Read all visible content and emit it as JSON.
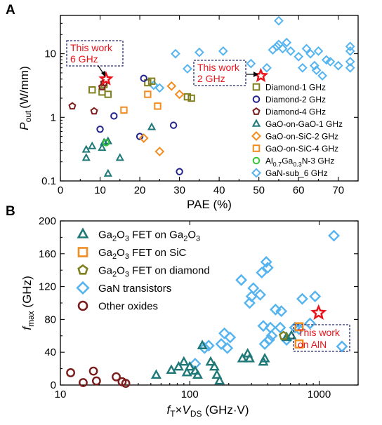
{
  "chart_data": [
    {
      "type": "scatter",
      "panel_label": "A",
      "xlabel": "PAE (%)",
      "ylabel_main": "P",
      "ylabel_sub": "out",
      "ylabel_unit": "(W/mm)",
      "x_ticks": [
        "0",
        "10",
        "20",
        "30",
        "40",
        "50",
        "60",
        "70"
      ],
      "y_ticks": [
        "0.1",
        "1",
        "10"
      ],
      "xlim": [
        0,
        75
      ],
      "ylim": [
        0.1,
        40
      ],
      "y_scale": "log",
      "legend_placement": "right",
      "series": [
        {
          "name": "Diamond-1 GHz",
          "marker": "square",
          "color": "#7f7f1f",
          "points": [
            [
              8,
              2.7
            ],
            [
              10.5,
              2.5
            ],
            [
              11,
              3.3
            ],
            [
              12,
              2.3
            ],
            [
              22,
              3.5
            ],
            [
              23,
              3.7
            ],
            [
              32,
              2.1
            ],
            [
              33,
              2.0
            ]
          ]
        },
        {
          "name": "Diamond-2 GHz",
          "marker": "circle",
          "color": "#23238f",
          "points": [
            [
              10,
              0.65
            ],
            [
              13.5,
              1.05
            ],
            [
              20,
              0.5
            ],
            [
              21,
              4.1
            ],
            [
              28.5,
              0.75
            ],
            [
              30,
              0.14
            ]
          ]
        },
        {
          "name": "Diamond-4 GHz",
          "marker": "pentagon",
          "color": "#7a1c1c",
          "points": [
            [
              3,
              1.5
            ],
            [
              8.5,
              1.25
            ],
            [
              10.5,
              3.0
            ],
            [
              11,
              3.5
            ]
          ]
        },
        {
          "name": "GaO-on-GaO-1 GHz",
          "marker": "triangle",
          "color": "#1e7878",
          "points": [
            [
              6.5,
              0.23
            ],
            [
              6.5,
              0.31
            ],
            [
              8,
              0.35
            ],
            [
              10.5,
              0.33
            ],
            [
              11,
              0.4
            ],
            [
              12,
              0.42
            ],
            [
              12,
              0.13
            ],
            [
              15,
              0.23
            ],
            [
              23,
              0.7
            ]
          ]
        },
        {
          "name": "GaO-on-SiC-2 GHz",
          "marker": "diamond",
          "color": "#f28c1e",
          "points": [
            [
              21,
              0.47
            ],
            [
              25,
              0.29
            ],
            [
              28,
              3.1
            ],
            [
              30,
              2.3
            ]
          ]
        },
        {
          "name": "GaO-on-SiC-4 GHz",
          "marker": "square",
          "color": "#f28c1e",
          "points": [
            [
              16,
              1.3
            ],
            [
              22,
              2.3
            ],
            [
              24.5,
              1.5
            ]
          ]
        },
        {
          "name": "Al0.7Ga0.3N-3 GHz",
          "name_parts": [
            "Al",
            "0.7",
            "Ga",
            "0.3",
            "N-3 GHz"
          ],
          "marker": "circle",
          "color": "#38c738",
          "points": [
            [
              11.5,
              0.4
            ]
          ]
        },
        {
          "name": "GaN-sub_6 GHz",
          "marker": "diamond",
          "color": "#55b4ef",
          "points": [
            [
              23.5,
              3.2
            ],
            [
              25,
              2.9
            ],
            [
              29,
              10
            ],
            [
              32,
              5.8
            ],
            [
              35,
              10.5
            ],
            [
              41,
              11
            ],
            [
              48,
              7
            ],
            [
              52,
              6
            ],
            [
              53.5,
              11.5
            ],
            [
              54.5,
              13
            ],
            [
              55,
              33
            ],
            [
              55,
              14
            ],
            [
              56,
              12
            ],
            [
              57,
              15
            ],
            [
              58,
              11
            ],
            [
              60,
              9
            ],
            [
              61,
              6
            ],
            [
              62,
              12
            ],
            [
              63,
              10
            ],
            [
              64,
              6.5
            ],
            [
              64.5,
              5.5
            ],
            [
              65,
              11
            ],
            [
              66,
              4.5
            ],
            [
              67,
              8
            ],
            [
              68,
              7.5
            ],
            [
              70,
              6.5
            ],
            [
              73,
              13
            ],
            [
              73,
              11
            ],
            [
              73,
              7.5
            ],
            [
              73,
              6
            ]
          ]
        }
      ],
      "this_work": {
        "x": 11.5,
        "y": 4.0,
        "label_lines": [
          "This work",
          "6 GHz"
        ]
      },
      "this_work_2": {
        "x": 50.5,
        "y": 4.5,
        "label_lines": [
          "This work",
          "2 GHz"
        ]
      }
    },
    {
      "type": "scatter",
      "panel_label": "B",
      "xlabel_parts": [
        "f",
        "T",
        "×",
        "V",
        "DS",
        " (GHz·V)"
      ],
      "ylabel_parts": [
        "f",
        "max",
        " (GHz)"
      ],
      "x_ticks": [
        "10",
        "100",
        "1000"
      ],
      "y_ticks": [
        "0",
        "40",
        "80",
        "120",
        "160",
        "200"
      ],
      "xlim": [
        10,
        2000
      ],
      "ylim": [
        0,
        200
      ],
      "x_scale": "log",
      "legend_placement": "top-left",
      "series": [
        {
          "name": "Ga2O3 FET on Ga2O3",
          "name_parts": [
            "Ga",
            "2",
            "O",
            "3",
            " FET on Ga",
            "2",
            "O",
            "3"
          ],
          "marker": "triangle",
          "color": "#1e7878",
          "points": [
            [
              55,
              12
            ],
            [
              72,
              18
            ],
            [
              82,
              22
            ],
            [
              90,
              28
            ],
            [
              95,
              15
            ],
            [
              100,
              22
            ],
            [
              110,
              17
            ],
            [
              115,
              12
            ],
            [
              125,
              48
            ],
            [
              145,
              28
            ],
            [
              155,
              22
            ],
            [
              162,
              12
            ],
            [
              170,
              5
            ],
            [
              255,
              32
            ],
            [
              280,
              38
            ],
            [
              290,
              32
            ],
            [
              370,
              28
            ],
            [
              380,
              32
            ],
            [
              560,
              58
            ],
            [
              610,
              60
            ]
          ]
        },
        {
          "name": "Ga2O3 FET on SiC",
          "name_parts": [
            "Ga",
            "2",
            "O",
            "3",
            " FET on SiC"
          ],
          "marker": "square",
          "color": "#f28c1e",
          "points": [
            [
              700,
              71
            ],
            [
              700,
              50
            ]
          ]
        },
        {
          "name": "Ga2O3 FET on diamond",
          "name_parts": [
            "Ga",
            "2",
            "O",
            "3",
            " FET on diamond"
          ],
          "marker": "pentagon",
          "color": "#7f7f1f",
          "points": [
            [
              530,
              60
            ]
          ]
        },
        {
          "name": "GaN transistors",
          "marker": "diamond",
          "color": "#55b4ef",
          "points": [
            [
              110,
              26
            ],
            [
              130,
              45
            ],
            [
              140,
              48
            ],
            [
              175,
              50
            ],
            [
              185,
              63
            ],
            [
              195,
              45
            ],
            [
              205,
              58
            ],
            [
              250,
              128
            ],
            [
              290,
              100
            ],
            [
              300,
              108
            ],
            [
              310,
              118
            ],
            [
              350,
              110
            ],
            [
              360,
              137
            ],
            [
              370,
              72
            ],
            [
              380,
              50
            ],
            [
              390,
              150
            ],
            [
              400,
              143
            ],
            [
              410,
              55
            ],
            [
              420,
              70
            ],
            [
              430,
              60
            ],
            [
              460,
              92
            ],
            [
              500,
              70
            ],
            [
              510,
              90
            ],
            [
              560,
              55
            ],
            [
              650,
              70
            ],
            [
              700,
              68
            ],
            [
              740,
              105
            ],
            [
              850,
              75
            ],
            [
              930,
              108
            ],
            [
              1300,
              182
            ],
            [
              1500,
              47
            ]
          ]
        },
        {
          "name": "Other oxides",
          "marker": "circle",
          "color": "#7a1c1c",
          "points": [
            [
              12,
              15
            ],
            [
              15,
              3
            ],
            [
              18,
              17
            ],
            [
              19,
              5
            ],
            [
              27,
              10
            ],
            [
              30,
              4
            ],
            [
              32,
              2
            ]
          ]
        }
      ],
      "this_work": {
        "x": 990,
        "y": 88,
        "label_lines": [
          "This work",
          "on AlN"
        ]
      }
    }
  ]
}
